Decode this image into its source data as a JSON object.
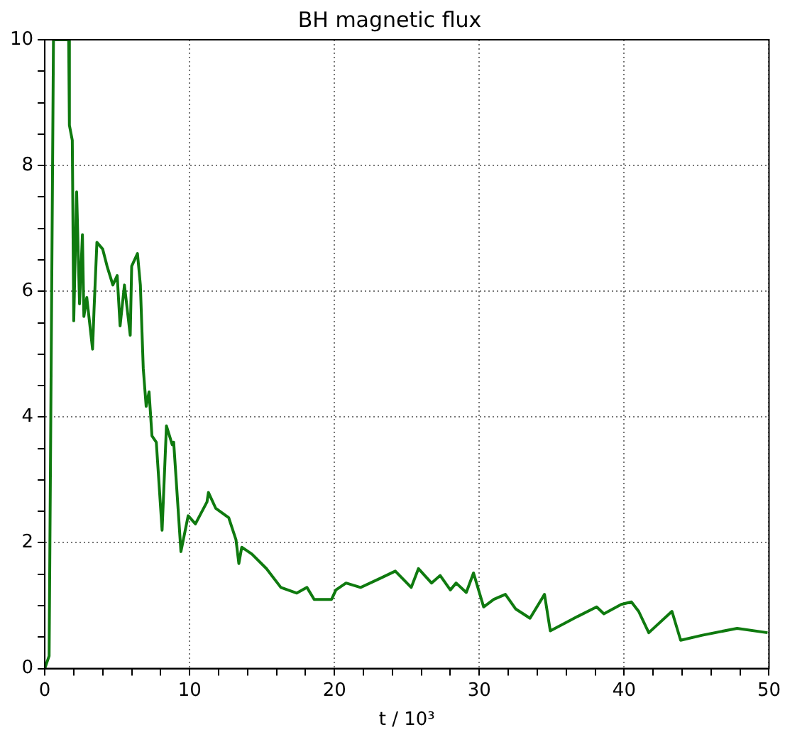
{
  "chart_data": {
    "type": "line",
    "title": "BH magnetic flux",
    "xlabel": "t / 10³",
    "x": [
      0.0,
      0.3,
      0.6,
      1.65,
      1.7,
      1.9,
      2.0,
      2.2,
      2.4,
      2.6,
      2.7,
      2.9,
      3.3,
      3.4,
      3.6,
      4.0,
      4.3,
      4.7,
      5.0,
      5.2,
      5.5,
      5.7,
      5.9,
      6.0,
      6.4,
      6.6,
      6.8,
      7.0,
      7.2,
      7.4,
      7.7,
      8.1,
      8.4,
      8.8,
      8.9,
      9.4,
      9.9,
      10.4,
      11.2,
      11.3,
      11.8,
      12.7,
      13.2,
      13.4,
      13.6,
      14.3,
      15.3,
      16.3,
      17.4,
      18.1,
      18.6,
      19.8,
      20.1,
      20.8,
      21.8,
      23.2,
      24.2,
      25.3,
      25.8,
      26.7,
      27.3,
      28.0,
      28.4,
      29.1,
      29.6,
      30.3,
      31.0,
      31.8,
      32.5,
      33.5,
      34.5,
      34.9,
      35.9,
      36.8,
      38.1,
      38.6,
      39.8,
      40.5,
      41.0,
      41.7,
      43.3,
      43.9,
      45.4,
      47.8,
      49.9
    ],
    "series": [
      {
        "color": "#0f7a0f",
        "values": [
          0,
          0.2,
          10,
          10,
          8.64,
          8.4,
          5.53,
          7.58,
          5.8,
          6.9,
          5.6,
          5.9,
          5.08,
          5.7,
          6.78,
          6.67,
          6.4,
          6.1,
          6.25,
          5.45,
          6.1,
          5.7,
          5.3,
          6.4,
          6.6,
          6.1,
          4.77,
          4.17,
          4.4,
          3.7,
          3.6,
          2.2,
          3.86,
          3.56,
          3.6,
          1.86,
          2.43,
          2.3,
          2.65,
          2.8,
          2.55,
          2.4,
          2.05,
          1.67,
          1.93,
          1.82,
          1.59,
          1.29,
          1.2,
          1.29,
          1.1,
          1.1,
          1.25,
          1.36,
          1.29,
          1.44,
          1.55,
          1.29,
          1.59,
          1.36,
          1.48,
          1.25,
          1.36,
          1.21,
          1.52,
          0.98,
          1.1,
          1.18,
          0.95,
          0.8,
          1.18,
          0.6,
          0.72,
          0.83,
          0.98,
          0.87,
          1.02,
          1.06,
          0.91,
          0.57,
          0.91,
          0.45,
          0.53,
          0.64,
          0.57
        ]
      }
    ],
    "xlim": [
      0,
      50
    ],
    "ylim": [
      0,
      10
    ],
    "xticks": [
      0,
      {
        "value": 2,
        "label": null
      },
      {
        "value": 4,
        "label": null
      },
      {
        "value": 6,
        "label": null
      },
      {
        "value": 8,
        "label": null
      },
      10,
      {
        "value": 12,
        "label": null
      },
      {
        "value": 14,
        "label": null
      },
      {
        "value": 16,
        "label": null
      },
      {
        "value": 18,
        "label": null
      },
      20,
      {
        "value": 22,
        "label": null
      },
      {
        "value": 24,
        "label": null
      },
      {
        "value": 26,
        "label": null
      },
      {
        "value": 28,
        "label": null
      },
      30,
      {
        "value": 32,
        "label": null
      },
      {
        "value": 34,
        "label": null
      },
      {
        "value": 36,
        "label": null
      },
      {
        "value": 38,
        "label": null
      },
      40,
      {
        "value": 42,
        "label": null
      },
      {
        "value": 44,
        "label": null
      },
      {
        "value": 46,
        "label": null
      },
      {
        "value": 48,
        "label": null
      },
      50
    ],
    "yticks": [
      0,
      {
        "value": 0.5,
        "label": null
      },
      {
        "value": 1,
        "label": null
      },
      {
        "value": 1.5,
        "label": null
      },
      2,
      {
        "value": 2.5,
        "label": null
      },
      {
        "value": 3,
        "label": null
      },
      {
        "value": 3.5,
        "label": null
      },
      4,
      {
        "value": 4.5,
        "label": null
      },
      {
        "value": 5,
        "label": null
      },
      {
        "value": 5.5,
        "label": null
      },
      6,
      {
        "value": 6.5,
        "label": null
      },
      {
        "value": 7,
        "label": null
      },
      {
        "value": 7.5,
        "label": null
      },
      8,
      {
        "value": 8.5,
        "label": null
      },
      {
        "value": 9,
        "label": null
      },
      {
        "value": 9.5,
        "label": null
      },
      10
    ],
    "grid": true,
    "legend": false,
    "marker": "none",
    "line_style": "solid"
  }
}
